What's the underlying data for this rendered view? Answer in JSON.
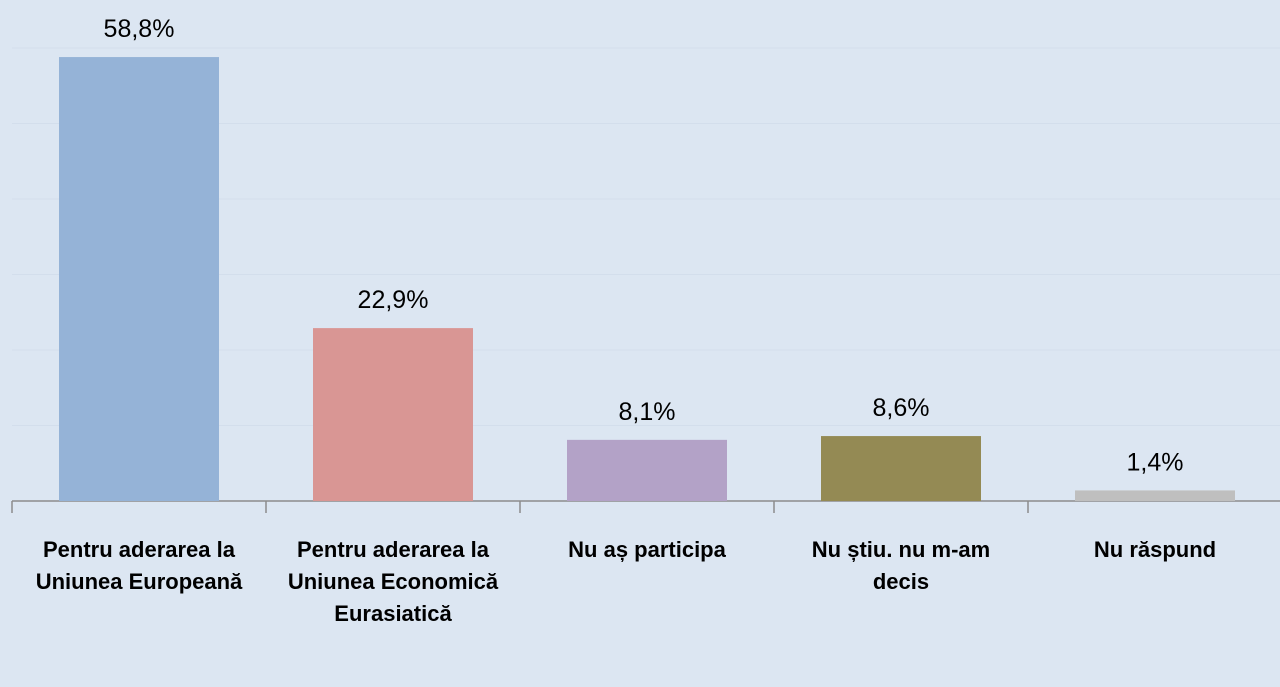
{
  "chart_data": {
    "type": "bar",
    "categories": [
      "Pentru aderarea la Uniunea Europeană",
      "Pentru aderarea la Uniunea Economică Eurasiatică",
      "Nu aș participa",
      "Nu știu. nu m-am decis",
      "Nu răspund"
    ],
    "values": [
      58.8,
      22.9,
      8.1,
      8.6,
      1.4
    ],
    "value_labels": [
      "58,8%",
      "22,9%",
      "8,1%",
      "8,6%",
      "1,4%"
    ],
    "colors": [
      "#95b3d7",
      "#d99694",
      "#b3a2c7",
      "#948a54",
      "#bfbfbf"
    ],
    "ylim": [
      0,
      60
    ],
    "yticks": [
      0,
      10,
      20,
      30,
      40,
      50,
      60
    ],
    "grid": true
  }
}
